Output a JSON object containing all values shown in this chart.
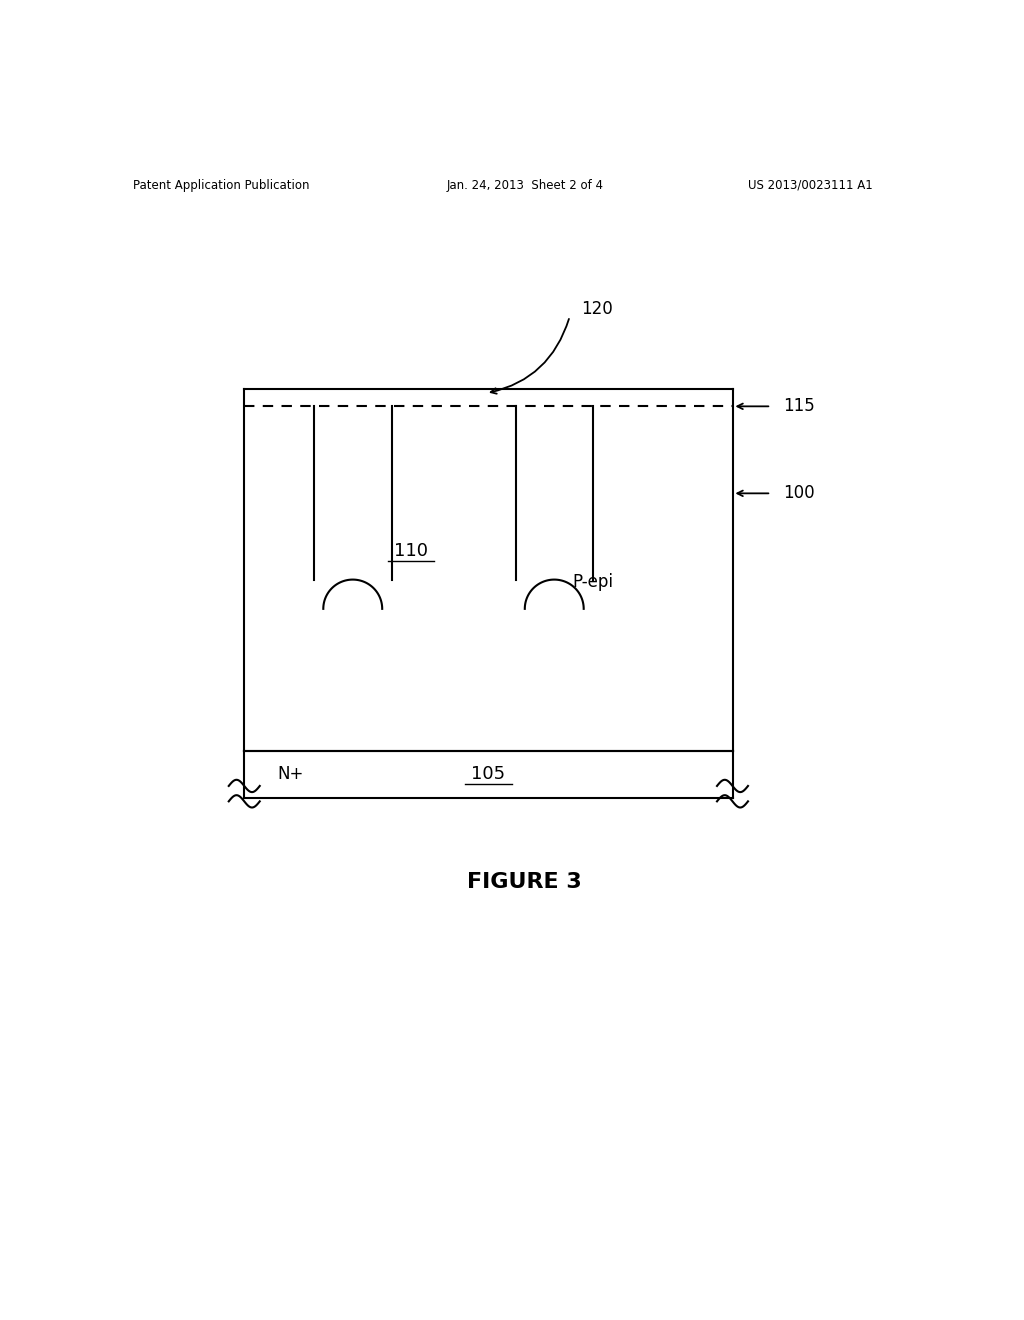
{
  "bg_color": "#ffffff",
  "line_color": "#000000",
  "header_left": "Patent Application Publication",
  "header_center": "Jan. 24, 2013  Sheet 2 of 4",
  "header_right": "US 2013/0023111 A1",
  "figure_caption": "FIGURE 3",
  "label_100": "100",
  "label_105": "105",
  "label_110": "110",
  "label_115": "115",
  "label_120": "120",
  "label_pepi": "P-epi",
  "label_nplus": "N+",
  "fig_width": 10.24,
  "fig_height": 13.2
}
